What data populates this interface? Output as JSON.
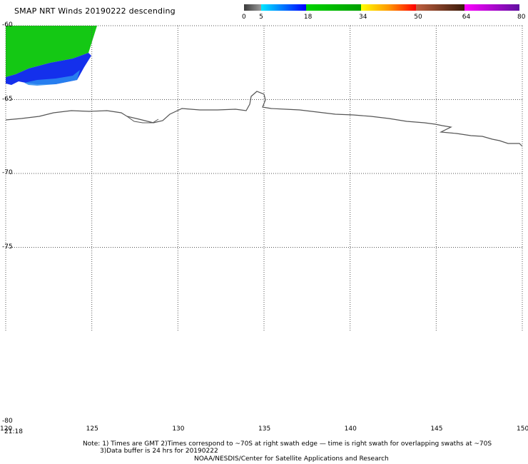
{
  "title": "SMAP NRT Winds  20190222 descending",
  "colorbar": {
    "labels": [
      "0",
      "5",
      "18",
      "34",
      "50",
      "64",
      "80"
    ],
    "segments": [
      {
        "from": 0,
        "to": 5,
        "colors": [
          "#3a3a3a",
          "#9a9a9a"
        ]
      },
      {
        "from": 5,
        "to": 18,
        "colors": [
          "#00e8ff",
          "#0000ff"
        ]
      },
      {
        "from": 18,
        "to": 34,
        "colors": [
          "#00d400",
          "#00a000"
        ]
      },
      {
        "from": 34,
        "to": 50,
        "colors": [
          "#ffff00",
          "#ff9900",
          "#ff0000"
        ]
      },
      {
        "from": 50,
        "to": 64,
        "colors": [
          "#c06040",
          "#3a1a0a"
        ]
      },
      {
        "from": 64,
        "to": 80,
        "colors": [
          "#ff00ff",
          "#6010a0"
        ]
      }
    ]
  },
  "map": {
    "lon_range": [
      120,
      150
    ],
    "lat_range": [
      -60,
      -80
    ],
    "lon_ticks": [
      "120",
      "125",
      "130",
      "135",
      "140",
      "145",
      "150"
    ],
    "lat_ticks": [
      "-60",
      "-65",
      "-70",
      "-75",
      "-80"
    ],
    "grid": "dotted"
  },
  "swath": {
    "winds": "18-34 kt (green) with 5-18 kt (blue) on southern edge",
    "time": "21:18"
  },
  "notes": {
    "line1": "Note: 1) Times are GMT 2)Times correspond to ~70S at right swath edge — time is right swath for overlapping swaths at ~70S",
    "line2": "3)Data buffer is 24 hrs for 20190222",
    "line3": "NOAA/NESDIS/Center for Satellite Applications and Research"
  },
  "colors": {
    "coast": "#555555",
    "grid": "#555555",
    "swath_green": "#16c416",
    "swath_blue": "#1028e8"
  }
}
